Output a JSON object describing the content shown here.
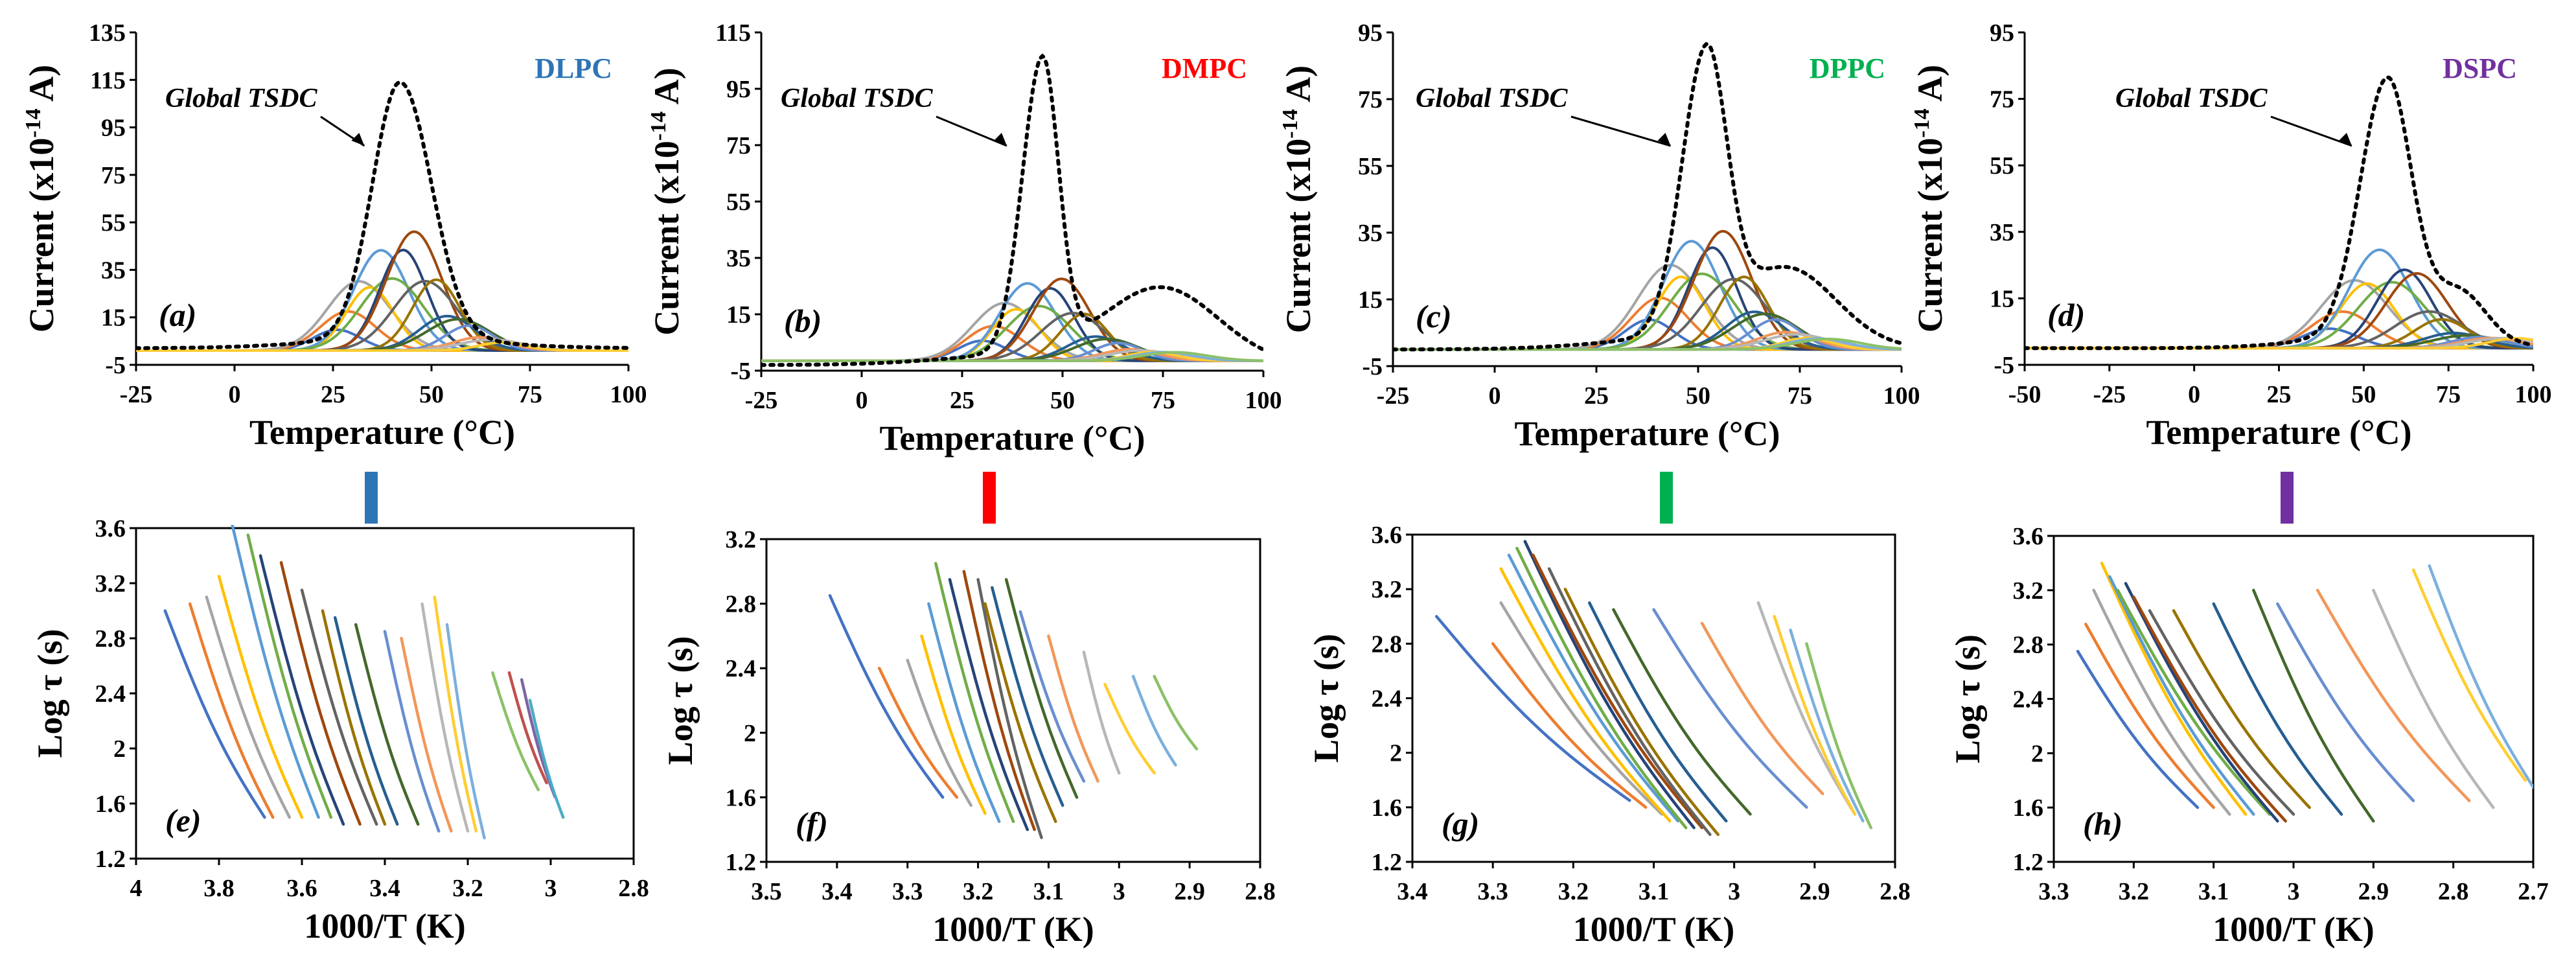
{
  "chart_data": [
    {
      "panel": "(a)",
      "type": "line",
      "label": "DLPC",
      "color": "#2e75b6",
      "xlabel": "Temperature (°C)",
      "ylabel": "Current (x10-14 A)",
      "xlim": [
        -25,
        100
      ],
      "ylim": [
        -5,
        135
      ],
      "xticks": [
        -25,
        0,
        25,
        50,
        75,
        100
      ],
      "yticks": [
        -5,
        15,
        35,
        55,
        75,
        95,
        115,
        135
      ],
      "annotation": "Global TSDC",
      "global": {
        "peak": 42,
        "height": 110,
        "left_width": 7,
        "right_width": 8,
        "baseline": 2,
        "shoulder": null
      },
      "components": {
        "count": 16,
        "start": 26,
        "end": 68,
        "max_height": 51,
        "width": 6
      }
    },
    {
      "panel": "(b)",
      "type": "line",
      "label": "DMPC",
      "color": "#ff0000",
      "xlabel": "Temperature (°C)",
      "ylabel": "Current (x10-14 A)",
      "xlim": [
        -25,
        100
      ],
      "ylim": [
        -5,
        115
      ],
      "xticks": [
        -25,
        0,
        25,
        50,
        75,
        100
      ],
      "yticks": [
        -5,
        15,
        35,
        55,
        75,
        95,
        115
      ],
      "annotation": "Global TSDC",
      "global": {
        "peak": 45,
        "height": 100,
        "left_width": 5,
        "right_width": 4,
        "baseline": -3,
        "shoulder": {
          "center": 75,
          "height": 26,
          "width": 14
        }
      },
      "components": {
        "count": 18,
        "start": 30,
        "end": 78,
        "max_height": 30,
        "width": 6
      }
    },
    {
      "panel": "(c)",
      "type": "line",
      "label": "DPPC",
      "color": "#00b050",
      "xlabel": "Temperature (°C)",
      "ylabel": "Current (x10-14 A)",
      "xlim": [
        -25,
        100
      ],
      "ylim": [
        -5,
        95
      ],
      "xticks": [
        -25,
        0,
        25,
        50,
        75,
        100
      ],
      "yticks": [
        -5,
        15,
        35,
        55,
        75,
        95
      ],
      "annotation": "Global TSDC",
      "global": {
        "peak": 52,
        "height": 82,
        "left_width": 6,
        "right_width": 5,
        "baseline": 0,
        "shoulder": {
          "center": 72,
          "height": 22,
          "width": 12
        }
      },
      "components": {
        "count": 18,
        "start": 38,
        "end": 82,
        "max_height": 36,
        "width": 6
      }
    },
    {
      "panel": "(d)",
      "type": "line",
      "label": "DSPC",
      "color": "#7030a0",
      "xlabel": "Temperature (°C)",
      "ylabel": "Current (x10-14 A)",
      "xlim": [
        -50,
        100
      ],
      "ylim": [
        -5,
        95
      ],
      "xticks": [
        -50,
        -25,
        0,
        25,
        50,
        75,
        100
      ],
      "yticks": [
        -5,
        15,
        35,
        55,
        75,
        95
      ],
      "annotation": "Global TSDC",
      "global": {
        "peak": 57,
        "height": 77,
        "left_width": 8,
        "right_width": 7,
        "baseline": 0,
        "shoulder": {
          "center": 78,
          "height": 15,
          "width": 8
        }
      },
      "components": {
        "count": 16,
        "start": 40,
        "end": 95,
        "max_height": 31,
        "width": 8
      }
    },
    {
      "panel": "(e)",
      "type": "line",
      "xlabel": "1000/T (K)",
      "ylabel": "Log τ (s)",
      "xlim": [
        4.0,
        2.8
      ],
      "ylim": [
        1.2,
        3.6
      ],
      "xticks": [
        4.0,
        3.8,
        3.6,
        3.4,
        3.2,
        3.0,
        2.8
      ],
      "yticks": [
        1.2,
        1.6,
        2.0,
        2.4,
        2.8,
        3.2,
        3.6
      ],
      "series": [
        {
          "x": [
            3.93,
            3.69
          ],
          "y": [
            3.0,
            1.5
          ]
        },
        {
          "x": [
            3.87,
            3.67
          ],
          "y": [
            3.05,
            1.5
          ]
        },
        {
          "x": [
            3.83,
            3.63
          ],
          "y": [
            3.1,
            1.5
          ]
        },
        {
          "x": [
            3.8,
            3.6
          ],
          "y": [
            3.25,
            1.5
          ]
        },
        {
          "x": [
            3.77,
            3.56
          ],
          "y": [
            3.65,
            1.5
          ]
        },
        {
          "x": [
            3.73,
            3.53
          ],
          "y": [
            3.55,
            1.5
          ]
        },
        {
          "x": [
            3.7,
            3.5
          ],
          "y": [
            3.4,
            1.45
          ]
        },
        {
          "x": [
            3.65,
            3.46
          ],
          "y": [
            3.35,
            1.45
          ]
        },
        {
          "x": [
            3.6,
            3.42
          ],
          "y": [
            3.15,
            1.45
          ]
        },
        {
          "x": [
            3.55,
            3.4
          ],
          "y": [
            3.0,
            1.45
          ]
        },
        {
          "x": [
            3.52,
            3.37
          ],
          "y": [
            2.95,
            1.45
          ]
        },
        {
          "x": [
            3.47,
            3.32
          ],
          "y": [
            2.9,
            1.45
          ]
        },
        {
          "x": [
            3.4,
            3.27
          ],
          "y": [
            2.85,
            1.4
          ]
        },
        {
          "x": [
            3.36,
            3.24
          ],
          "y": [
            2.8,
            1.4
          ]
        },
        {
          "x": [
            3.31,
            3.2
          ],
          "y": [
            3.05,
            1.4
          ]
        },
        {
          "x": [
            3.28,
            3.18
          ],
          "y": [
            3.1,
            1.4
          ]
        },
        {
          "x": [
            3.25,
            3.16
          ],
          "y": [
            2.9,
            1.35
          ]
        },
        {
          "x": [
            3.14,
            3.03
          ],
          "y": [
            2.55,
            1.7
          ]
        },
        {
          "x": [
            3.1,
            3.01
          ],
          "y": [
            2.55,
            1.75
          ]
        },
        {
          "x": [
            3.07,
            2.99
          ],
          "y": [
            2.5,
            1.65
          ]
        },
        {
          "x": [
            3.05,
            2.97
          ],
          "y": [
            2.35,
            1.5
          ]
        }
      ],
      "panel_label": "(e)"
    },
    {
      "panel": "(f)",
      "type": "line",
      "xlabel": "1000/T (K)",
      "ylabel": "Log τ (s)",
      "xlim": [
        3.5,
        2.8
      ],
      "ylim": [
        1.2,
        3.2
      ],
      "xticks": [
        3.5,
        3.4,
        3.3,
        3.2,
        3.1,
        3.0,
        2.9,
        2.8
      ],
      "yticks": [
        1.2,
        1.6,
        2.0,
        2.4,
        2.8,
        3.2
      ],
      "series": [
        {
          "x": [
            3.41,
            3.25
          ],
          "y": [
            2.85,
            1.6
          ]
        },
        {
          "x": [
            3.34,
            3.23
          ],
          "y": [
            2.4,
            1.6
          ]
        },
        {
          "x": [
            3.3,
            3.21
          ],
          "y": [
            2.45,
            1.55
          ]
        },
        {
          "x": [
            3.28,
            3.19
          ],
          "y": [
            2.6,
            1.5
          ]
        },
        {
          "x": [
            3.27,
            3.17
          ],
          "y": [
            2.8,
            1.45
          ]
        },
        {
          "x": [
            3.26,
            3.15
          ],
          "y": [
            3.05,
            1.45
          ]
        },
        {
          "x": [
            3.24,
            3.13
          ],
          "y": [
            2.95,
            1.4
          ]
        },
        {
          "x": [
            3.22,
            3.12
          ],
          "y": [
            3.0,
            1.4
          ]
        },
        {
          "x": [
            3.2,
            3.11
          ],
          "y": [
            2.95,
            1.35
          ]
        },
        {
          "x": [
            3.19,
            3.09
          ],
          "y": [
            2.8,
            1.45
          ]
        },
        {
          "x": [
            3.18,
            3.08
          ],
          "y": [
            2.9,
            1.55
          ]
        },
        {
          "x": [
            3.16,
            3.06
          ],
          "y": [
            2.95,
            1.6
          ]
        },
        {
          "x": [
            3.14,
            3.05
          ],
          "y": [
            2.75,
            1.7
          ]
        },
        {
          "x": [
            3.1,
            3.03
          ],
          "y": [
            2.6,
            1.7
          ]
        },
        {
          "x": [
            3.05,
            3.0
          ],
          "y": [
            2.5,
            1.75
          ]
        },
        {
          "x": [
            3.02,
            2.95
          ],
          "y": [
            2.3,
            1.75
          ]
        },
        {
          "x": [
            2.98,
            2.92
          ],
          "y": [
            2.35,
            1.8
          ]
        },
        {
          "x": [
            2.95,
            2.89
          ],
          "y": [
            2.35,
            1.9
          ]
        }
      ],
      "panel_label": "(f)"
    },
    {
      "panel": "(g)",
      "type": "line",
      "xlabel": "1000/T (K)",
      "ylabel": "Log τ (s)",
      "xlim": [
        3.4,
        2.8
      ],
      "ylim": [
        1.2,
        3.6
      ],
      "xticks": [
        3.4,
        3.3,
        3.2,
        3.1,
        3.0,
        2.9,
        2.8
      ],
      "yticks": [
        1.2,
        1.6,
        2.0,
        2.4,
        2.8,
        3.2,
        3.6
      ],
      "series": [
        {
          "x": [
            3.37,
            3.13
          ],
          "y": [
            3.0,
            1.65
          ]
        },
        {
          "x": [
            3.3,
            3.11
          ],
          "y": [
            2.8,
            1.6
          ]
        },
        {
          "x": [
            3.29,
            3.09
          ],
          "y": [
            3.1,
            1.55
          ]
        },
        {
          "x": [
            3.29,
            3.08
          ],
          "y": [
            3.35,
            1.5
          ]
        },
        {
          "x": [
            3.28,
            3.07
          ],
          "y": [
            3.45,
            1.5
          ]
        },
        {
          "x": [
            3.27,
            3.06
          ],
          "y": [
            3.5,
            1.45
          ]
        },
        {
          "x": [
            3.26,
            3.05
          ],
          "y": [
            3.55,
            1.45
          ]
        },
        {
          "x": [
            3.25,
            3.04
          ],
          "y": [
            3.45,
            1.45
          ]
        },
        {
          "x": [
            3.23,
            3.03
          ],
          "y": [
            3.35,
            1.4
          ]
        },
        {
          "x": [
            3.21,
            3.02
          ],
          "y": [
            3.2,
            1.4
          ]
        },
        {
          "x": [
            3.18,
            3.01
          ],
          "y": [
            3.1,
            1.5
          ]
        },
        {
          "x": [
            3.15,
            2.98
          ],
          "y": [
            3.05,
            1.55
          ]
        },
        {
          "x": [
            3.1,
            2.91
          ],
          "y": [
            3.05,
            1.6
          ]
        },
        {
          "x": [
            3.04,
            2.89
          ],
          "y": [
            2.95,
            1.7
          ]
        },
        {
          "x": [
            2.97,
            2.85
          ],
          "y": [
            3.1,
            1.55
          ]
        },
        {
          "x": [
            2.95,
            2.85
          ],
          "y": [
            3.0,
            1.55
          ]
        },
        {
          "x": [
            2.93,
            2.84
          ],
          "y": [
            2.9,
            1.5
          ]
        },
        {
          "x": [
            2.91,
            2.83
          ],
          "y": [
            2.8,
            1.45
          ]
        }
      ],
      "panel_label": "(g)"
    },
    {
      "panel": "(h)",
      "type": "line",
      "xlabel": "1000/T (K)",
      "ylabel": "Log τ (s)",
      "xlim": [
        3.3,
        2.7
      ],
      "ylim": [
        1.2,
        3.6
      ],
      "xticks": [
        3.3,
        3.2,
        3.1,
        3.0,
        2.9,
        2.8,
        2.7
      ],
      "yticks": [
        1.2,
        1.6,
        2.0,
        2.4,
        2.8,
        3.2,
        3.6
      ],
      "series": [
        {
          "x": [
            3.27,
            3.12
          ],
          "y": [
            2.75,
            1.6
          ]
        },
        {
          "x": [
            3.26,
            3.1
          ],
          "y": [
            2.95,
            1.6
          ]
        },
        {
          "x": [
            3.25,
            3.08
          ],
          "y": [
            3.2,
            1.55
          ]
        },
        {
          "x": [
            3.24,
            3.06
          ],
          "y": [
            3.4,
            1.55
          ]
        },
        {
          "x": [
            3.23,
            3.05
          ],
          "y": [
            3.3,
            1.55
          ]
        },
        {
          "x": [
            3.22,
            3.03
          ],
          "y": [
            3.2,
            1.55
          ]
        },
        {
          "x": [
            3.21,
            3.02
          ],
          "y": [
            3.25,
            1.5
          ]
        },
        {
          "x": [
            3.2,
            3.01
          ],
          "y": [
            3.15,
            1.5
          ]
        },
        {
          "x": [
            3.18,
            3.0
          ],
          "y": [
            3.05,
            1.55
          ]
        },
        {
          "x": [
            3.15,
            2.98
          ],
          "y": [
            3.05,
            1.6
          ]
        },
        {
          "x": [
            3.1,
            2.94
          ],
          "y": [
            3.1,
            1.55
          ]
        },
        {
          "x": [
            3.05,
            2.9
          ],
          "y": [
            3.2,
            1.5
          ]
        },
        {
          "x": [
            3.02,
            2.85
          ],
          "y": [
            3.1,
            1.65
          ]
        },
        {
          "x": [
            2.97,
            2.78
          ],
          "y": [
            3.2,
            1.65
          ]
        },
        {
          "x": [
            2.9,
            2.75
          ],
          "y": [
            3.2,
            1.6
          ]
        },
        {
          "x": [
            2.85,
            2.71
          ],
          "y": [
            3.35,
            1.8
          ]
        },
        {
          "x": [
            2.83,
            2.7
          ],
          "y": [
            3.38,
            1.75
          ]
        }
      ],
      "panel_label": "(h)"
    }
  ],
  "palette": [
    "#4472c4",
    "#ed7d31",
    "#a5a5a5",
    "#ffc000",
    "#5b9bd5",
    "#70ad47",
    "#264478",
    "#9e480e",
    "#636363",
    "#997300",
    "#255e91",
    "#43682b",
    "#698ed0",
    "#f1975a",
    "#b7b7b7",
    "#ffcd33",
    "#7cafdd",
    "#8cc168",
    "#c0504d",
    "#8064a2",
    "#4bacc6"
  ]
}
